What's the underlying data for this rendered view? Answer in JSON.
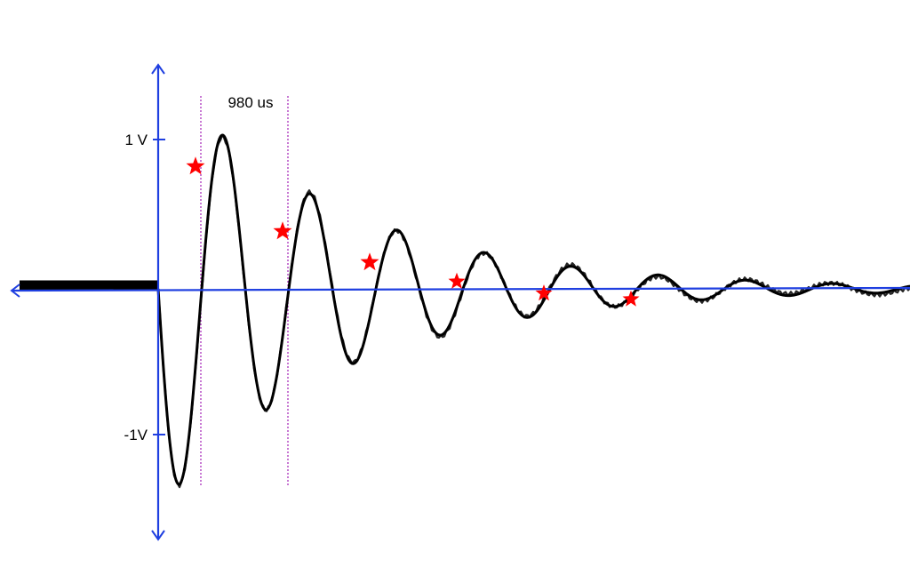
{
  "chart_data": {
    "type": "line",
    "title": "",
    "xlabel": "",
    "ylabel": "",
    "y_tick_labels": [
      {
        "label": "1 V",
        "value": 1
      },
      {
        "label": "-1V",
        "value": -1
      }
    ],
    "annotation": {
      "label": "980 us",
      "from_ms": 0.45,
      "to_ms": 1.43
    },
    "signal": {
      "description_x_unit": "ms",
      "baseline": 0,
      "start_ms": 0,
      "end_ms": 8.6,
      "period_ms": 0.98,
      "initial_amplitude_v": 1.49,
      "decay_per_ms": 0.49,
      "phase_offset_ms": 0.2
    },
    "series": [
      {
        "marker": "star",
        "color": "#ff0000",
        "x": [
          0.45,
          1.43,
          2.41,
          3.39,
          4.37,
          5.35
        ],
        "y": [
          0.95,
          0.51,
          0.3,
          0.17,
          0.09,
          0.05
        ]
      }
    ],
    "colors": {
      "axis": "#1f3fe0",
      "signal": "#000000",
      "marker_line": "#b040c0",
      "star": "#ff0000"
    },
    "xlim": [
      -1.6,
      8.6
    ],
    "ylim": [
      -1.5,
      1.5
    ],
    "grid": false
  }
}
